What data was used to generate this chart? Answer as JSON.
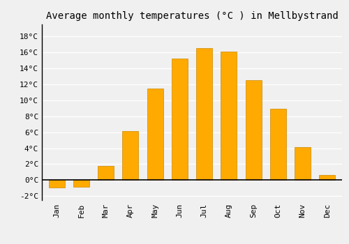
{
  "title": "Average monthly temperatures (°C ) in Mellbystrand",
  "months": [
    "Jan",
    "Feb",
    "Mar",
    "Apr",
    "May",
    "Jun",
    "Jul",
    "Aug",
    "Sep",
    "Oct",
    "Nov",
    "Dec"
  ],
  "values": [
    -0.9,
    -0.8,
    1.8,
    6.1,
    11.5,
    15.2,
    16.5,
    16.1,
    12.5,
    8.9,
    4.1,
    0.6
  ],
  "bar_color": "#FFAA00",
  "bar_edge_color": "#CC8800",
  "ylim": [
    -2.5,
    19.5
  ],
  "yticks": [
    -2,
    0,
    2,
    4,
    6,
    8,
    10,
    12,
    14,
    16,
    18
  ],
  "background_color": "#f0f0f0",
  "grid_color": "#ffffff",
  "title_fontsize": 10,
  "tick_fontsize": 8
}
